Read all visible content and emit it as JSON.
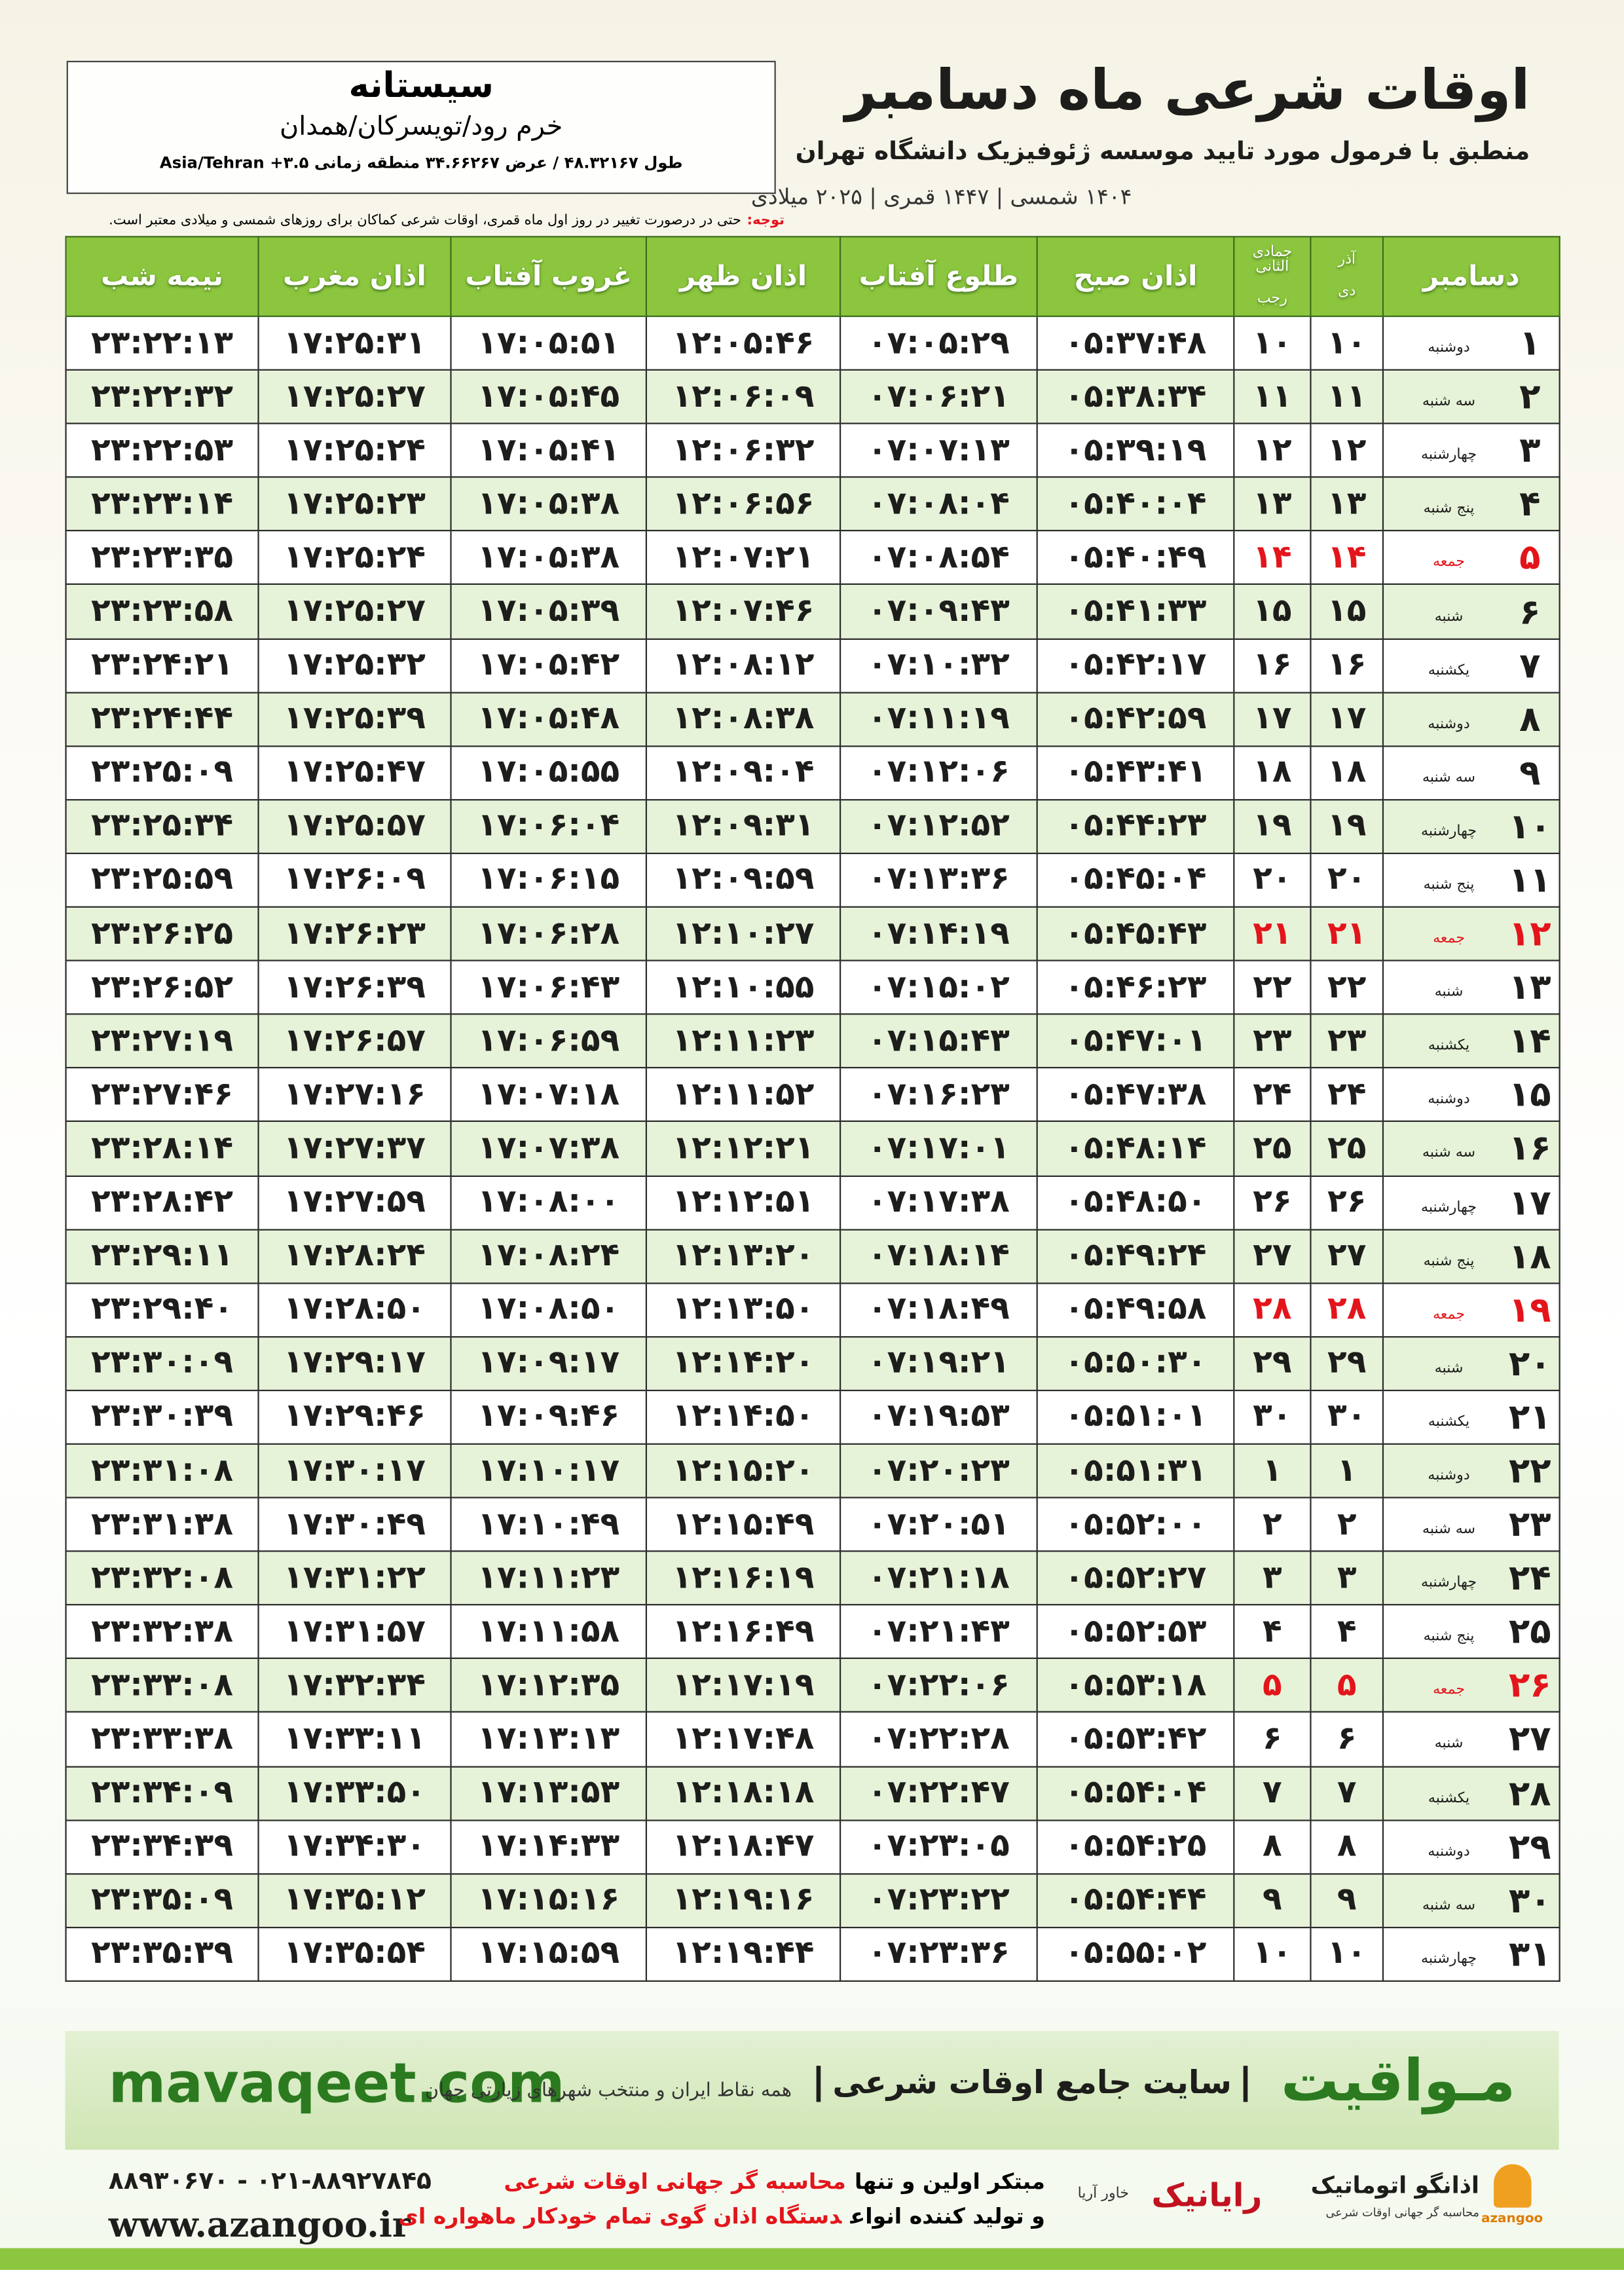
{
  "header": {
    "title": "اوقات شرعی ماه دسامبر",
    "subtitle": "منطبق با فرمول مورد تایید موسسه ژئوفیزیک دانشگاه تهران",
    "dates": "۱۴۰۴ شمسی | ۱۴۴۷ قمری | ۲۰۲۵ میلادی"
  },
  "location": {
    "name": "سیستانه",
    "region": "خرم رود/تویسرکان/همدان",
    "coords": "طول ۴۸.۳۲۱۶۷ / عرض ۳۴.۶۶۲۶۷ منطقه زمانی ۳.۵+ Asia/Tehran"
  },
  "note": {
    "label": "توجه:",
    "text": "حتی در درصورت تغییر در روز اول ماه قمری، اوقات شرعی کماکان برای روزهای شمسی و میلادی معتبر است."
  },
  "table": {
    "columns": [
      "دسامبر",
      {
        "top": "آذر",
        "bottom": "دی"
      },
      {
        "top": "جمادی الثانی",
        "bottom": "رجب"
      },
      "اذان صبح",
      "طلوع آفتاب",
      "اذان ظهر",
      "غروب آفتاب",
      "اذان مغرب",
      "نیمه شب"
    ],
    "highlight_rows": [
      4,
      11,
      18,
      25
    ],
    "highlight_color": "#e3151b",
    "rows": [
      [
        "۱",
        "دوشنبه",
        "۱۰",
        "۱۰",
        "۰۵:۳۷:۴۸",
        "۰۷:۰۵:۲۹",
        "۱۲:۰۵:۴۶",
        "۱۷:۰۵:۵۱",
        "۱۷:۲۵:۳۱",
        "۲۳:۲۲:۱۳"
      ],
      [
        "۲",
        "سه شنبه",
        "۱۱",
        "۱۱",
        "۰۵:۳۸:۳۴",
        "۰۷:۰۶:۲۱",
        "۱۲:۰۶:۰۹",
        "۱۷:۰۵:۴۵",
        "۱۷:۲۵:۲۷",
        "۲۳:۲۲:۳۲"
      ],
      [
        "۳",
        "چهارشنبه",
        "۱۲",
        "۱۲",
        "۰۵:۳۹:۱۹",
        "۰۷:۰۷:۱۳",
        "۱۲:۰۶:۳۲",
        "۱۷:۰۵:۴۱",
        "۱۷:۲۵:۲۴",
        "۲۳:۲۲:۵۳"
      ],
      [
        "۴",
        "پنج شنبه",
        "۱۳",
        "۱۳",
        "۰۵:۴۰:۰۴",
        "۰۷:۰۸:۰۴",
        "۱۲:۰۶:۵۶",
        "۱۷:۰۵:۳۸",
        "۱۷:۲۵:۲۳",
        "۲۳:۲۳:۱۴"
      ],
      [
        "۵",
        "جمعه",
        "۱۴",
        "۱۴",
        "۰۵:۴۰:۴۹",
        "۰۷:۰۸:۵۴",
        "۱۲:۰۷:۲۱",
        "۱۷:۰۵:۳۸",
        "۱۷:۲۵:۲۴",
        "۲۳:۲۳:۳۵"
      ],
      [
        "۶",
        "شنبه",
        "۱۵",
        "۱۵",
        "۰۵:۴۱:۳۳",
        "۰۷:۰۹:۴۳",
        "۱۲:۰۷:۴۶",
        "۱۷:۰۵:۳۹",
        "۱۷:۲۵:۲۷",
        "۲۳:۲۳:۵۸"
      ],
      [
        "۷",
        "یکشنبه",
        "۱۶",
        "۱۶",
        "۰۵:۴۲:۱۷",
        "۰۷:۱۰:۳۲",
        "۱۲:۰۸:۱۲",
        "۱۷:۰۵:۴۲",
        "۱۷:۲۵:۳۲",
        "۲۳:۲۴:۲۱"
      ],
      [
        "۸",
        "دوشنبه",
        "۱۷",
        "۱۷",
        "۰۵:۴۲:۵۹",
        "۰۷:۱۱:۱۹",
        "۱۲:۰۸:۳۸",
        "۱۷:۰۵:۴۸",
        "۱۷:۲۵:۳۹",
        "۲۳:۲۴:۴۴"
      ],
      [
        "۹",
        "سه شنبه",
        "۱۸",
        "۱۸",
        "۰۵:۴۳:۴۱",
        "۰۷:۱۲:۰۶",
        "۱۲:۰۹:۰۴",
        "۱۷:۰۵:۵۵",
        "۱۷:۲۵:۴۷",
        "۲۳:۲۵:۰۹"
      ],
      [
        "۱۰",
        "چهارشنبه",
        "۱۹",
        "۱۹",
        "۰۵:۴۴:۲۳",
        "۰۷:۱۲:۵۲",
        "۱۲:۰۹:۳۱",
        "۱۷:۰۶:۰۴",
        "۱۷:۲۵:۵۷",
        "۲۳:۲۵:۳۴"
      ],
      [
        "۱۱",
        "پنج شنبه",
        "۲۰",
        "۲۰",
        "۰۵:۴۵:۰۴",
        "۰۷:۱۳:۳۶",
        "۱۲:۰۹:۵۹",
        "۱۷:۰۶:۱۵",
        "۱۷:۲۶:۰۹",
        "۲۳:۲۵:۵۹"
      ],
      [
        "۱۲",
        "جمعه",
        "۲۱",
        "۲۱",
        "۰۵:۴۵:۴۳",
        "۰۷:۱۴:۱۹",
        "۱۲:۱۰:۲۷",
        "۱۷:۰۶:۲۸",
        "۱۷:۲۶:۲۳",
        "۲۳:۲۶:۲۵"
      ],
      [
        "۱۳",
        "شنبه",
        "۲۲",
        "۲۲",
        "۰۵:۴۶:۲۳",
        "۰۷:۱۵:۰۲",
        "۱۲:۱۰:۵۵",
        "۱۷:۰۶:۴۳",
        "۱۷:۲۶:۳۹",
        "۲۳:۲۶:۵۲"
      ],
      [
        "۱۴",
        "یکشنبه",
        "۲۳",
        "۲۳",
        "۰۵:۴۷:۰۱",
        "۰۷:۱۵:۴۳",
        "۱۲:۱۱:۲۳",
        "۱۷:۰۶:۵۹",
        "۱۷:۲۶:۵۷",
        "۲۳:۲۷:۱۹"
      ],
      [
        "۱۵",
        "دوشنبه",
        "۲۴",
        "۲۴",
        "۰۵:۴۷:۳۸",
        "۰۷:۱۶:۲۳",
        "۱۲:۱۱:۵۲",
        "۱۷:۰۷:۱۸",
        "۱۷:۲۷:۱۶",
        "۲۳:۲۷:۴۶"
      ],
      [
        "۱۶",
        "سه شنبه",
        "۲۵",
        "۲۵",
        "۰۵:۴۸:۱۴",
        "۰۷:۱۷:۰۱",
        "۱۲:۱۲:۲۱",
        "۱۷:۰۷:۳۸",
        "۱۷:۲۷:۳۷",
        "۲۳:۲۸:۱۴"
      ],
      [
        "۱۷",
        "چهارشنبه",
        "۲۶",
        "۲۶",
        "۰۵:۴۸:۵۰",
        "۰۷:۱۷:۳۸",
        "۱۲:۱۲:۵۱",
        "۱۷:۰۸:۰۰",
        "۱۷:۲۷:۵۹",
        "۲۳:۲۸:۴۲"
      ],
      [
        "۱۸",
        "پنج شنبه",
        "۲۷",
        "۲۷",
        "۰۵:۴۹:۲۴",
        "۰۷:۱۸:۱۴",
        "۱۲:۱۳:۲۰",
        "۱۷:۰۸:۲۴",
        "۱۷:۲۸:۲۴",
        "۲۳:۲۹:۱۱"
      ],
      [
        "۱۹",
        "جمعه",
        "۲۸",
        "۲۸",
        "۰۵:۴۹:۵۸",
        "۰۷:۱۸:۴۹",
        "۱۲:۱۳:۵۰",
        "۱۷:۰۸:۵۰",
        "۱۷:۲۸:۵۰",
        "۲۳:۲۹:۴۰"
      ],
      [
        "۲۰",
        "شنبه",
        "۲۹",
        "۲۹",
        "۰۵:۵۰:۳۰",
        "۰۷:۱۹:۲۱",
        "۱۲:۱۴:۲۰",
        "۱۷:۰۹:۱۷",
        "۱۷:۲۹:۱۷",
        "۲۳:۳۰:۰۹"
      ],
      [
        "۲۱",
        "یکشنبه",
        "۳۰",
        "۳۰",
        "۰۵:۵۱:۰۱",
        "۰۷:۱۹:۵۳",
        "۱۲:۱۴:۵۰",
        "۱۷:۰۹:۴۶",
        "۱۷:۲۹:۴۶",
        "۲۳:۳۰:۳۹"
      ],
      [
        "۲۲",
        "دوشنبه",
        "۱",
        "۱",
        "۰۵:۵۱:۳۱",
        "۰۷:۲۰:۲۳",
        "۱۲:۱۵:۲۰",
        "۱۷:۱۰:۱۷",
        "۱۷:۳۰:۱۷",
        "۲۳:۳۱:۰۸"
      ],
      [
        "۲۳",
        "سه شنبه",
        "۲",
        "۲",
        "۰۵:۵۲:۰۰",
        "۰۷:۲۰:۵۱",
        "۱۲:۱۵:۴۹",
        "۱۷:۱۰:۴۹",
        "۱۷:۳۰:۴۹",
        "۲۳:۳۱:۳۸"
      ],
      [
        "۲۴",
        "چهارشنبه",
        "۳",
        "۳",
        "۰۵:۵۲:۲۷",
        "۰۷:۲۱:۱۸",
        "۱۲:۱۶:۱۹",
        "۱۷:۱۱:۲۳",
        "۱۷:۳۱:۲۲",
        "۲۳:۳۲:۰۸"
      ],
      [
        "۲۵",
        "پنج شنبه",
        "۴",
        "۴",
        "۰۵:۵۲:۵۳",
        "۰۷:۲۱:۴۳",
        "۱۲:۱۶:۴۹",
        "۱۷:۱۱:۵۸",
        "۱۷:۳۱:۵۷",
        "۲۳:۳۲:۳۸"
      ],
      [
        "۲۶",
        "جمعه",
        "۵",
        "۵",
        "۰۵:۵۳:۱۸",
        "۰۷:۲۲:۰۶",
        "۱۲:۱۷:۱۹",
        "۱۷:۱۲:۳۵",
        "۱۷:۳۲:۳۴",
        "۲۳:۳۳:۰۸"
      ],
      [
        "۲۷",
        "شنبه",
        "۶",
        "۶",
        "۰۵:۵۳:۴۲",
        "۰۷:۲۲:۲۸",
        "۱۲:۱۷:۴۸",
        "۱۷:۱۳:۱۳",
        "۱۷:۳۳:۱۱",
        "۲۳:۳۳:۳۸"
      ],
      [
        "۲۸",
        "یکشنبه",
        "۷",
        "۷",
        "۰۵:۵۴:۰۴",
        "۰۷:۲۲:۴۷",
        "۱۲:۱۸:۱۸",
        "۱۷:۱۳:۵۳",
        "۱۷:۳۳:۵۰",
        "۲۳:۳۴:۰۹"
      ],
      [
        "۲۹",
        "دوشنبه",
        "۸",
        "۸",
        "۰۵:۵۴:۲۵",
        "۰۷:۲۳:۰۵",
        "۱۲:۱۸:۴۷",
        "۱۷:۱۴:۳۳",
        "۱۷:۳۴:۳۰",
        "۲۳:۳۴:۳۹"
      ],
      [
        "۳۰",
        "سه شنبه",
        "۹",
        "۹",
        "۰۵:۵۴:۴۴",
        "۰۷:۲۳:۲۲",
        "۱۲:۱۹:۱۶",
        "۱۷:۱۵:۱۶",
        "۱۷:۳۵:۱۲",
        "۲۳:۳۵:۰۹"
      ],
      [
        "۳۱",
        "چهارشنبه",
        "۱۰",
        "۱۰",
        "۰۵:۵۵:۰۲",
        "۰۷:۲۳:۳۶",
        "۱۲:۱۹:۴۴",
        "۱۷:۱۵:۵۹",
        "۱۷:۳۵:۵۴",
        "۲۳:۳۵:۳۹"
      ]
    ]
  },
  "banner": {
    "site": "mavaqeet.com",
    "brand": "مـواقیت",
    "slogan": "سایت جامع اوقات شرعی",
    "scope": "همه نقاط ایران و منتخب شهرهای زیارتی جهان"
  },
  "bottom": {
    "phones": "۰۲۱-۸۸۹۲۷۸۴۵ - ۸۸۹۳۰۶۷۰",
    "web": "www.azangoo.ir",
    "line1": [
      "مبتکر اولین و تنها",
      "محاسبه گر جهانی اوقات شرعی"
    ],
    "line2": [
      "و تولید کننده انواع",
      "دستگاه اذان گوی تمام خودکار ماهواره ای"
    ],
    "logos": {
      "rayanik": "رایانیک",
      "khavar": "خاور آریا",
      "azangoo_fa": "اذانگو اتوماتیک",
      "azangoo_sub": "محاسبه گر جهانی اوقات شرعی",
      "azangoo_en": "azangoo"
    }
  }
}
